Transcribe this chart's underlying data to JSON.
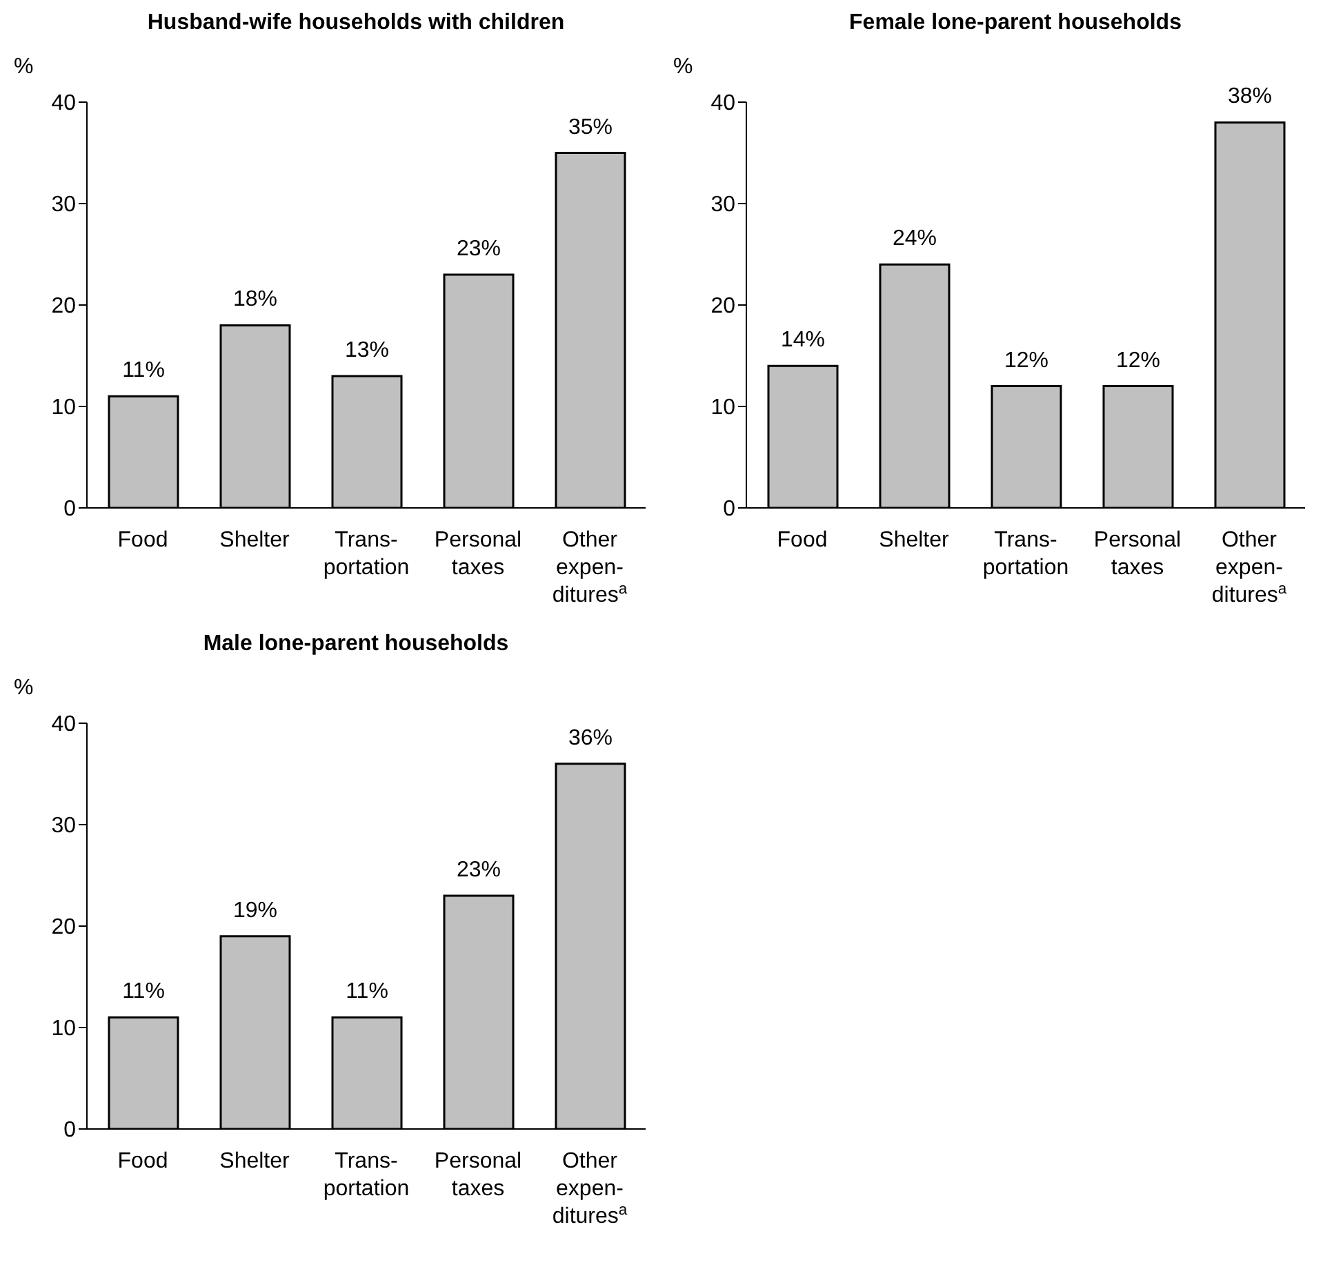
{
  "chart_data": [
    {
      "type": "bar",
      "title": "Husband-wife households with children",
      "ylabel": "%",
      "categories": [
        "Food",
        "Shelter",
        "Trans-\nportation",
        "Personal\ntaxes",
        "Other\nexpen-\nditures$^{a}$"
      ],
      "values": [
        11,
        18,
        13,
        23,
        35
      ],
      "value_labels": [
        "11%",
        "18%",
        "13%",
        "23%",
        "35%"
      ],
      "color": "#c0c0c0",
      "ylim": [
        0,
        40
      ],
      "yticks": [
        0,
        10,
        20,
        30,
        40
      ],
      "grid": false,
      "legend": false
    },
    {
      "type": "bar",
      "title": "Female lone-parent households",
      "ylabel": "%",
      "categories": [
        "Food",
        "Shelter",
        "Trans-\nportation",
        "Personal\ntaxes",
        "Other\nexpen-\nditures$^{a}$"
      ],
      "values": [
        14,
        24,
        12,
        12,
        38
      ],
      "value_labels": [
        "14%",
        "24%",
        "12%",
        "12%",
        "38%"
      ],
      "color": "#c0c0c0",
      "ylim": [
        0,
        40
      ],
      "yticks": [
        0,
        10,
        20,
        30,
        40
      ],
      "grid": false,
      "legend": false
    },
    {
      "type": "bar",
      "title": "Male lone-parent households",
      "ylabel": "%",
      "categories": [
        "Food",
        "Shelter",
        "Trans-\nportation",
        "Personal\ntaxes",
        "Other\nexpen-\nditures$^{a}$"
      ],
      "values": [
        11,
        19,
        11,
        23,
        36
      ],
      "value_labels": [
        "11%",
        "19%",
        "11%",
        "23%",
        "36%"
      ],
      "color": "#c0c0c0",
      "ylim": [
        0,
        40
      ],
      "yticks": [
        0,
        10,
        20,
        30,
        40
      ],
      "grid": false,
      "legend": false
    }
  ]
}
